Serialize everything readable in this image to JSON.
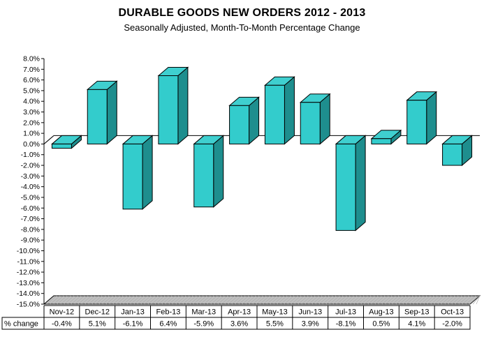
{
  "chart_data": {
    "type": "bar",
    "title": "DURABLE GOODS NEW ORDERS 2012 - 2013",
    "subtitle": "Seasonally Adjusted,  Month-To-Month Percentage Change",
    "categories": [
      "Nov-12",
      "Dec-12",
      "Jan-13",
      "Feb-13",
      "Mar-13",
      "Apr-13",
      "May-13",
      "Jun-13",
      "Jul-13",
      "Aug-13",
      "Sep-13",
      "Oct-13"
    ],
    "series": [
      {
        "name": "% change",
        "values": [
          -0.4,
          5.1,
          -6.1,
          6.4,
          -5.9,
          3.6,
          5.5,
          3.9,
          -8.1,
          0.5,
          4.1,
          -2.0
        ]
      }
    ],
    "value_labels": [
      "-0.4%",
      "5.1%",
      "-6.1%",
      "6.4%",
      "-5.9%",
      "3.6%",
      "5.5%",
      "3.9%",
      "-8.1%",
      "0.5%",
      "4.1%",
      "-2.0%"
    ],
    "y_tick_labels": [
      "8.0%",
      "7.0%",
      "6.0%",
      "5.0%",
      "4.0%",
      "3.0%",
      "2.0%",
      "1.0%",
      "0.0%",
      "-1.0%",
      "-2.0%",
      "-3.0%",
      "-4.0%",
      "-5.0%",
      "-6.0%",
      "-7.0%",
      "-8.0%",
      "-9.0%",
      "-10.0%",
      "-11.0%",
      "-12.0%",
      "-13.0%",
      "-14.0%",
      "-15.0%"
    ],
    "ylim": [
      -15,
      8
    ],
    "xlabel": "",
    "ylabel": "",
    "table_row_label": "% change",
    "colors": {
      "bar_front": "#33CCCC",
      "bar_side": "#1E8E8E",
      "bar_top": "#3FCFCF",
      "floor": "#C0C0C0",
      "axis": "#000000"
    }
  }
}
